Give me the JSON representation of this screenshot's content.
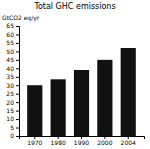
{
  "chart_data": {
    "type": "bar",
    "title": "Total GHC emissions",
    "ylabel": "GtCO2 eq/yr",
    "categories": [
      "1970",
      "1980",
      "1990",
      "2000",
      "2004"
    ],
    "values": [
      30.0,
      33.5,
      39.0,
      45.0,
      52.0
    ],
    "color": "#111111",
    "ylim": [
      0,
      65
    ],
    "yticks": [
      0,
      5,
      10,
      15,
      20,
      25,
      30,
      35,
      40,
      45,
      50,
      55,
      60,
      65
    ],
    "grid": false
  }
}
